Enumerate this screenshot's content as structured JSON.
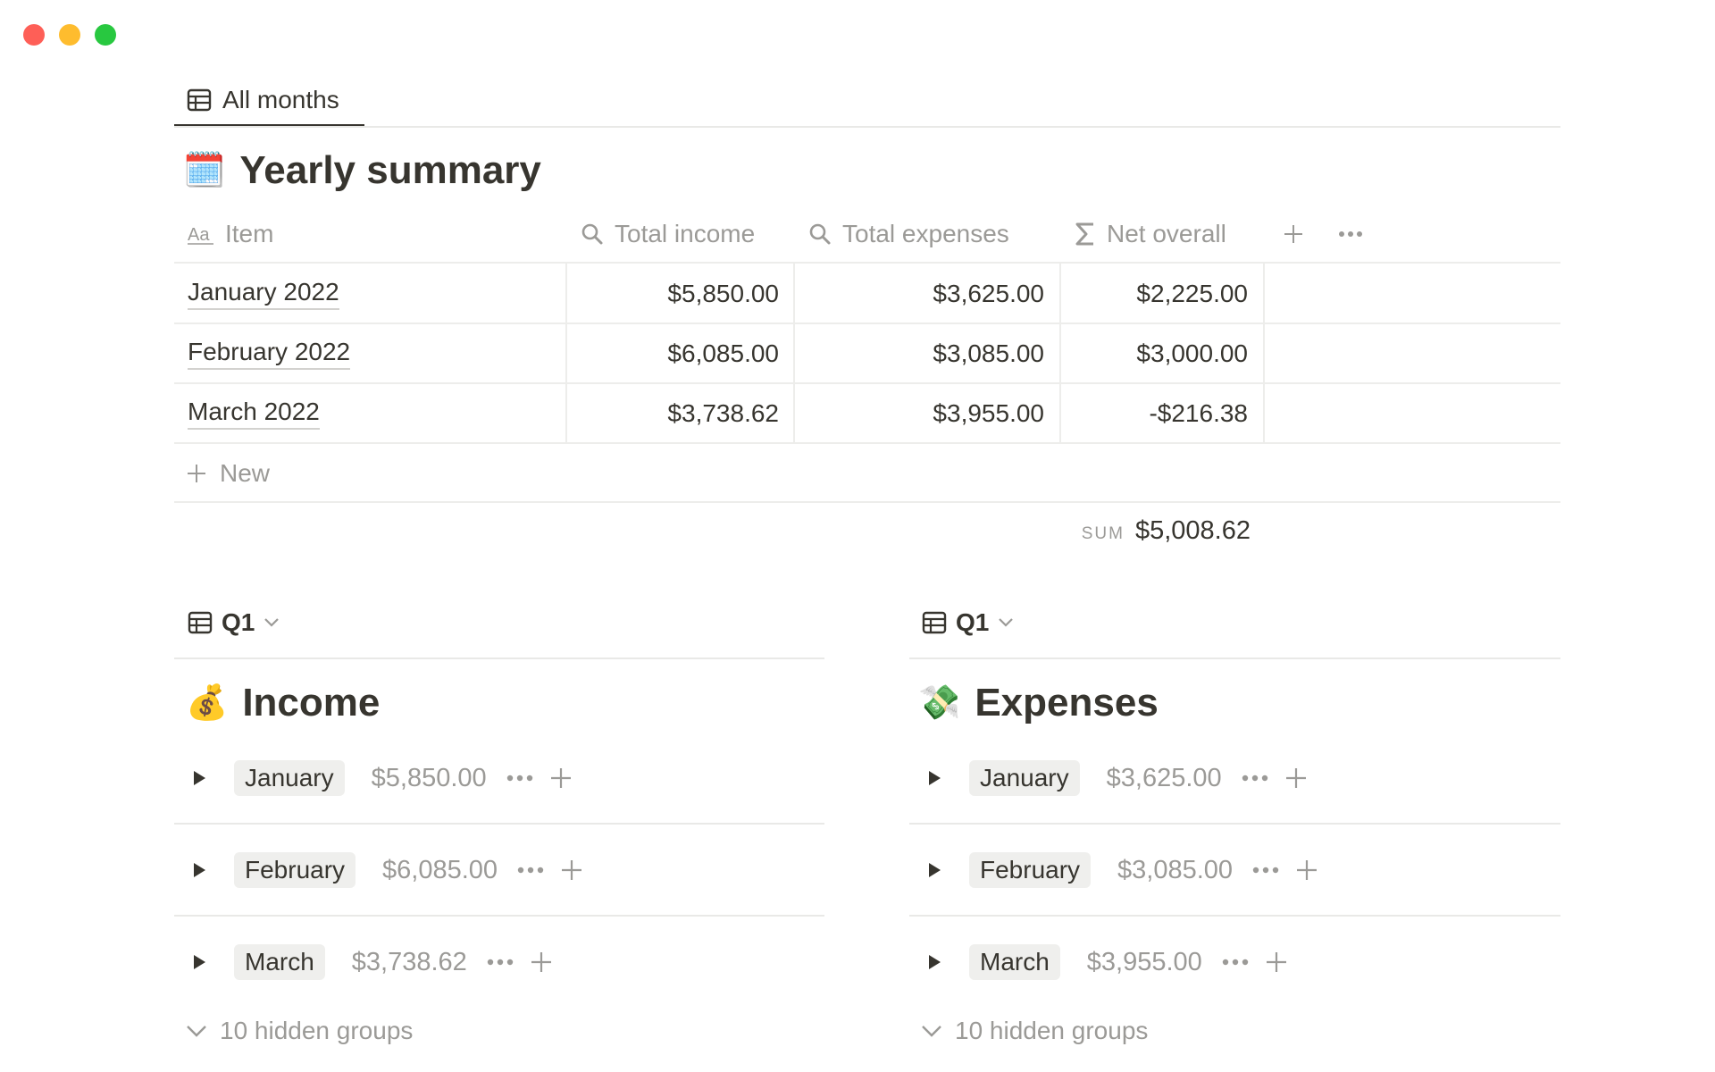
{
  "window": {
    "controls": [
      "close",
      "minimize",
      "zoom"
    ]
  },
  "view_tab": {
    "icon": "table-icon",
    "label": "All months"
  },
  "summary": {
    "emoji": "🗓️",
    "title": "Yearly summary",
    "columns": [
      {
        "icon": "text-property-icon",
        "label": "Item"
      },
      {
        "icon": "search-icon",
        "label": "Total income"
      },
      {
        "icon": "search-icon",
        "label": "Total expenses"
      },
      {
        "icon": "sigma-icon",
        "label": "Net overall"
      }
    ],
    "rows": [
      {
        "item": "January 2022",
        "income": "$5,850.00",
        "expenses": "$3,625.00",
        "net": "$2,225.00"
      },
      {
        "item": "February 2022",
        "income": "$6,085.00",
        "expenses": "$3,085.00",
        "net": "$3,000.00"
      },
      {
        "item": "March 2022",
        "income": "$3,738.62",
        "expenses": "$3,955.00",
        "net": "-$216.38"
      }
    ],
    "new_label": "New",
    "sum_label": "SUM",
    "sum_value": "$5,008.62"
  },
  "income": {
    "view_label": "Q1",
    "emoji": "💰",
    "title": "Income",
    "groups": [
      {
        "label": "January",
        "amount": "$5,850.00"
      },
      {
        "label": "February",
        "amount": "$6,085.00"
      },
      {
        "label": "March",
        "amount": "$3,738.62"
      }
    ],
    "hidden_groups_label": "10 hidden groups"
  },
  "expenses": {
    "view_label": "Q1",
    "emoji": "💸",
    "title": "Expenses",
    "groups": [
      {
        "label": "January",
        "amount": "$3,625.00"
      },
      {
        "label": "February",
        "amount": "$3,085.00"
      },
      {
        "label": "March",
        "amount": "$3,955.00"
      }
    ],
    "hidden_groups_label": "10 hidden groups"
  },
  "colors": {
    "text": "#37352f",
    "muted": "#9b9a97",
    "divider": "#e9e9e7",
    "pill_bg": "#efefed",
    "close": "#fe5f57",
    "minimize": "#febc2e",
    "zoom": "#28c840"
  }
}
